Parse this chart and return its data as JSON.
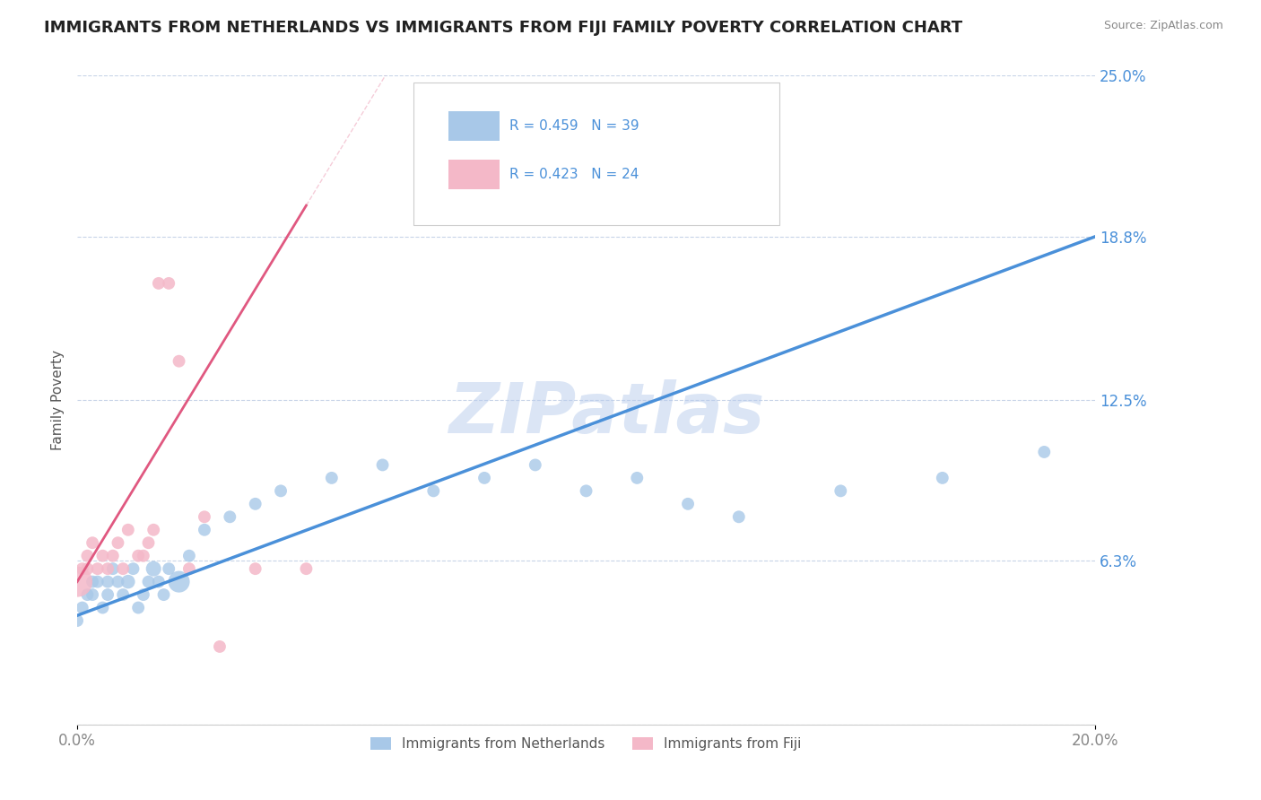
{
  "title": "IMMIGRANTS FROM NETHERLANDS VS IMMIGRANTS FROM FIJI FAMILY POVERTY CORRELATION CHART",
  "source": "Source: ZipAtlas.com",
  "ylabel": "Family Poverty",
  "legend_label_1": "Immigrants from Netherlands",
  "legend_label_2": "Immigrants from Fiji",
  "r1": 0.459,
  "n1": 39,
  "r2": 0.423,
  "n2": 24,
  "color1": "#a8c8e8",
  "color2": "#f4b8c8",
  "line_color1": "#4a90d9",
  "line_color2": "#e05880",
  "background_color": "#ffffff",
  "grid_color": "#c8d4e8",
  "xlim": [
    0.0,
    0.2
  ],
  "ylim": [
    0.0,
    0.25
  ],
  "yticks": [
    0.0,
    0.063,
    0.125,
    0.188,
    0.25
  ],
  "ytick_labels": [
    "",
    "6.3%",
    "12.5%",
    "18.8%",
    "25.0%"
  ],
  "watermark": "ZIPatlas",
  "nl_x": [
    0.0,
    0.001,
    0.002,
    0.003,
    0.003,
    0.004,
    0.005,
    0.006,
    0.006,
    0.007,
    0.008,
    0.009,
    0.01,
    0.011,
    0.012,
    0.013,
    0.014,
    0.015,
    0.016,
    0.017,
    0.018,
    0.02,
    0.022,
    0.025,
    0.03,
    0.035,
    0.04,
    0.05,
    0.06,
    0.07,
    0.08,
    0.09,
    0.1,
    0.11,
    0.12,
    0.13,
    0.15,
    0.17,
    0.19
  ],
  "nl_y": [
    0.04,
    0.045,
    0.05,
    0.05,
    0.055,
    0.055,
    0.045,
    0.05,
    0.055,
    0.06,
    0.055,
    0.05,
    0.055,
    0.06,
    0.045,
    0.05,
    0.055,
    0.06,
    0.055,
    0.05,
    0.06,
    0.055,
    0.065,
    0.075,
    0.08,
    0.085,
    0.09,
    0.095,
    0.1,
    0.09,
    0.095,
    0.1,
    0.09,
    0.095,
    0.085,
    0.08,
    0.09,
    0.095,
    0.105
  ],
  "nl_size": [
    20,
    20,
    20,
    20,
    20,
    20,
    20,
    20,
    20,
    20,
    20,
    20,
    25,
    20,
    20,
    20,
    20,
    30,
    20,
    20,
    20,
    60,
    20,
    20,
    20,
    20,
    20,
    20,
    20,
    20,
    20,
    20,
    20,
    20,
    20,
    20,
    20,
    20,
    20
  ],
  "fj_x": [
    0.0,
    0.001,
    0.002,
    0.002,
    0.003,
    0.004,
    0.005,
    0.006,
    0.007,
    0.008,
    0.009,
    0.01,
    0.012,
    0.013,
    0.014,
    0.015,
    0.016,
    0.018,
    0.02,
    0.022,
    0.025,
    0.028,
    0.035,
    0.045
  ],
  "fj_y": [
    0.055,
    0.06,
    0.06,
    0.065,
    0.07,
    0.06,
    0.065,
    0.06,
    0.065,
    0.07,
    0.06,
    0.075,
    0.065,
    0.065,
    0.07,
    0.075,
    0.17,
    0.17,
    0.14,
    0.06,
    0.08,
    0.03,
    0.06,
    0.06
  ],
  "fj_size": [
    120,
    20,
    20,
    20,
    20,
    20,
    20,
    20,
    20,
    20,
    20,
    20,
    20,
    20,
    20,
    20,
    20,
    20,
    20,
    20,
    20,
    20,
    20,
    20
  ]
}
